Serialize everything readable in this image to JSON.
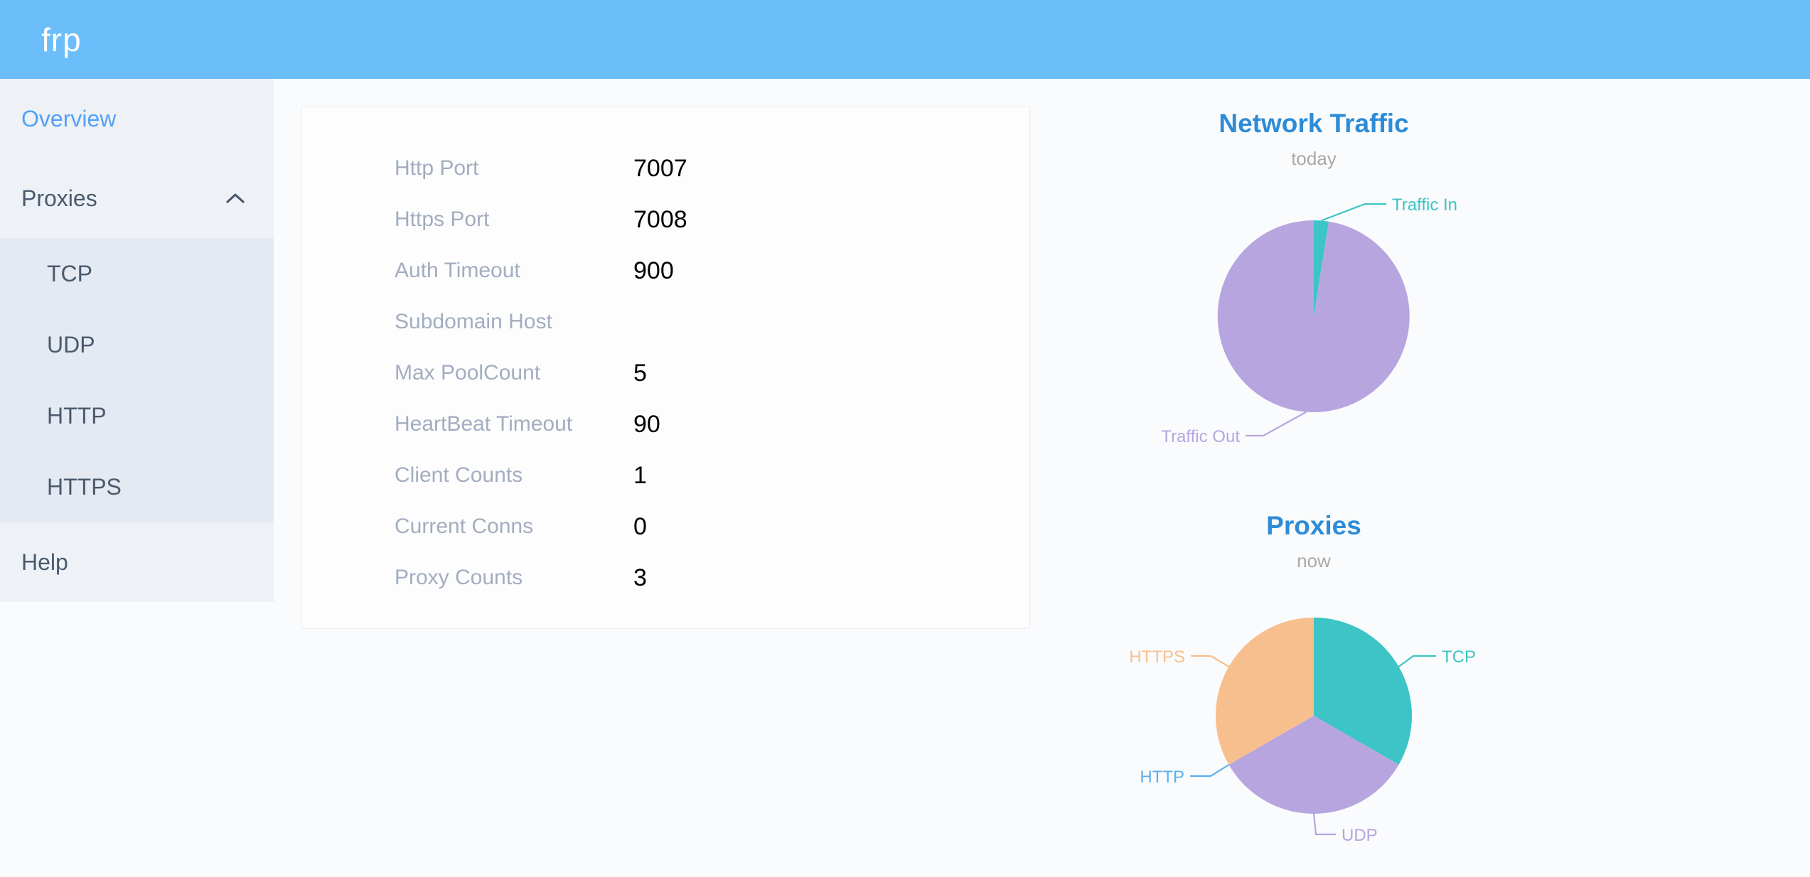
{
  "header": {
    "logo_text": "frp"
  },
  "sidebar": {
    "items": [
      {
        "label": "Overview",
        "active": true
      },
      {
        "label": "Proxies",
        "expanded": true,
        "icon": "chevron-up"
      },
      {
        "label": "TCP",
        "submenu_of": "Proxies"
      },
      {
        "label": "UDP",
        "submenu_of": "Proxies"
      },
      {
        "label": "HTTP",
        "submenu_of": "Proxies"
      },
      {
        "label": "HTTPS",
        "submenu_of": "Proxies"
      },
      {
        "label": "Help"
      }
    ]
  },
  "server_info": {
    "rows": [
      {
        "label": "Http Port",
        "value": "7007"
      },
      {
        "label": "Https Port",
        "value": "7008"
      },
      {
        "label": "Auth Timeout",
        "value": "900"
      },
      {
        "label": "Subdomain Host",
        "value": ""
      },
      {
        "label": "Max PoolCount",
        "value": "5"
      },
      {
        "label": "HeartBeat Timeout",
        "value": "90"
      },
      {
        "label": "Client Counts",
        "value": "1"
      },
      {
        "label": "Current Conns",
        "value": "0"
      },
      {
        "label": "Proxy Counts",
        "value": "3"
      }
    ]
  },
  "chart_data": [
    {
      "type": "pie",
      "title": "Network Traffic",
      "subtitle": "today",
      "legend_position": "outside-callout-labels",
      "slices": [
        {
          "label": "Traffic In",
          "percent": 2.5,
          "color": "#3cc4c6"
        },
        {
          "label": "Traffic Out",
          "percent": 97.5,
          "color": "#b7a5df"
        }
      ]
    },
    {
      "type": "pie",
      "title": "Proxies",
      "subtitle": "now",
      "legend_position": "outside-callout-labels",
      "slices": [
        {
          "label": "TCP",
          "value": 1,
          "color": "#3cc4c6"
        },
        {
          "label": "UDP",
          "value": 1,
          "color": "#b7a5df"
        },
        {
          "label": "HTTP",
          "value": 0,
          "color": "#5ab1ef"
        },
        {
          "label": "HTTPS",
          "value": 1,
          "color": "#f8bf8e"
        }
      ]
    }
  ],
  "colors": {
    "header_bg": "#6cbefa",
    "page_bg": "#fafbfc",
    "sidebar_bg": "#eef2f7",
    "submenu_bg": "#e5e9f1",
    "menu_text": "#4a5a6d",
    "active_menu_text": "#55a0f5",
    "card_bg": "#fdfdfe",
    "card_border": "#e8ebf1",
    "info_label": "#a3adc0",
    "info_value": "#000000",
    "chart_title": "#2d8cd8",
    "chart_subtitle": "#a9a9a9"
  }
}
